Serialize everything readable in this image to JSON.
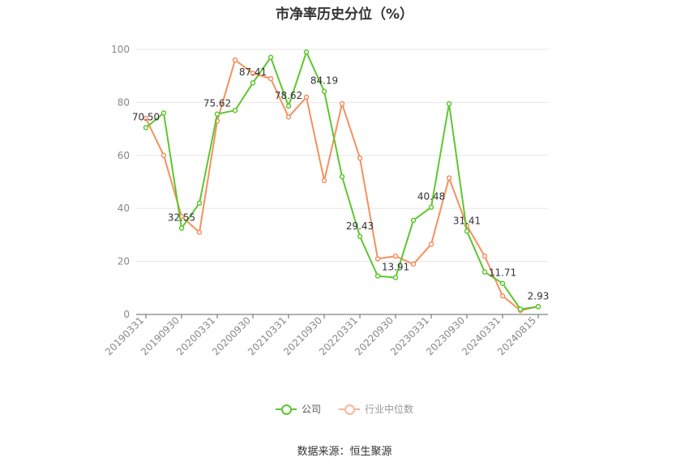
{
  "chart_data": {
    "type": "line",
    "title": "市净率历史分位（%）",
    "ylim": [
      0,
      100
    ],
    "yticks": [
      0,
      20,
      40,
      60,
      80,
      100
    ],
    "x_tick_labels": [
      "20190331",
      "20190930",
      "20200331",
      "20200930",
      "20210331",
      "20210930",
      "20220331",
      "20220930",
      "20230331",
      "20230930",
      "20240331",
      "20240815"
    ],
    "x_tick_positions": [
      0,
      2,
      4,
      6,
      8,
      10,
      12,
      14,
      16,
      18,
      20,
      22
    ],
    "grid": true,
    "legend_position": "bottom",
    "series": [
      {
        "name": "公司",
        "color": "#5ec62f",
        "values": [
          70.5,
          76,
          32.55,
          42,
          75.62,
          77,
          87.41,
          97,
          78.62,
          99,
          84.19,
          52,
          29.43,
          14.5,
          13.91,
          35.5,
          40.48,
          79.5,
          31.41,
          16,
          11.71,
          2,
          2.93
        ],
        "labels": [
          "70.50",
          "",
          "32.55",
          "",
          "75.62",
          "",
          "87.41",
          "",
          "78.62",
          "",
          "84.19",
          "",
          "29.43",
          "",
          "13.91",
          "",
          "40.48",
          "",
          "31.41",
          "",
          "11.71",
          "",
          "2.93"
        ]
      },
      {
        "name": "行业中位数",
        "color": "#f5905e",
        "values": [
          74,
          60,
          37,
          31,
          73,
          96,
          91,
          89,
          74.5,
          82,
          50.5,
          79.5,
          59,
          21,
          22,
          19,
          26.5,
          51.5,
          33.5,
          22,
          7,
          1.5,
          3
        ]
      }
    ]
  },
  "source": "数据来源：恒生聚源"
}
